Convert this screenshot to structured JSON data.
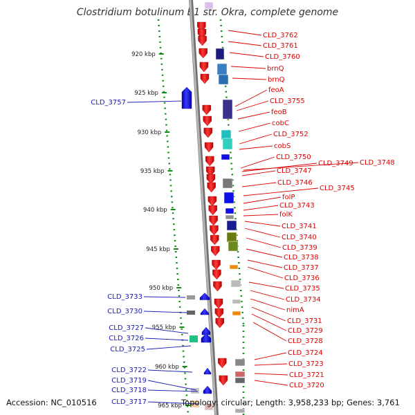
{
  "title": "Clostridium botulinum B1 str. Okra, complete genome",
  "accession": "Accession: NC_010516",
  "summary": "Topology: circular; Length: 3,958,233 bp; Genes: 3,761",
  "colors": {
    "forward_label": "#1a1ab4",
    "reverse_label": "#dd0000",
    "forward_gene": "#1010e6",
    "reverse_gene": "#ee1111",
    "backbone": "#8a8a8a",
    "scale_dots": "#118811"
  },
  "scale_ticks": [
    "920 kbp",
    "925 kbp",
    "930 kbp",
    "935 kbp",
    "940 kbp",
    "945 kbp",
    "950 kbp",
    "955 kbp",
    "960 kbp",
    "965 kbp"
  ],
  "forward_genes": [
    "CLD_3757",
    "CLD_3733",
    "CLD_3730",
    "CLD_3727",
    "CLD_3726",
    "CLD_3725",
    "CLD_3722",
    "CLD_3719",
    "CLD_3718",
    "CLD_3717"
  ],
  "reverse_genes": [
    "CLD_3762",
    "CLD_3761",
    "CLD_3760",
    "brnQ",
    "brnQ",
    "feoA",
    "CLD_3755",
    "feoB",
    "cobC",
    "CLD_3752",
    "cobS",
    "CLD_3750",
    "CLD_3749",
    "CLD_3748",
    "CLD_3747",
    "CLD_3746",
    "CLD_3745",
    "folP",
    "CLD_3743",
    "folK",
    "CLD_3741",
    "CLD_3740",
    "CLD_3739",
    "CLD_3738",
    "CLD_3737",
    "CLD_3736",
    "CLD_3735",
    "CLD_3734",
    "nimA",
    "CLD_3731",
    "CLD_3729",
    "CLD_3728",
    "CLD_3724",
    "CLD_3723",
    "CLD_3721",
    "CLD_3720"
  ]
}
